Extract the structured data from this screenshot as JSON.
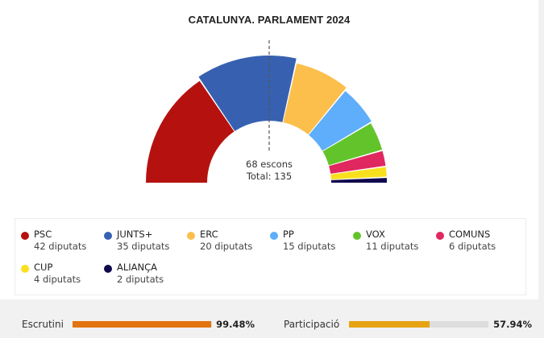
{
  "chart_data": {
    "type": "pie",
    "subtype": "hemicycle",
    "title": "CATALUNYA. PARLAMENT 2024",
    "majority_label": "68 escons",
    "total_label": "Total: 135",
    "majority": 68,
    "total": 135,
    "series": [
      {
        "name": "PSC",
        "seats": 42,
        "seats_label": "42 diputats",
        "color": "#b5120f"
      },
      {
        "name": "JUNTS+",
        "seats": 35,
        "seats_label": "35 diputats",
        "color": "#3761b0"
      },
      {
        "name": "ERC",
        "seats": 20,
        "seats_label": "20 diputats",
        "color": "#fcbf4c"
      },
      {
        "name": "PP",
        "seats": 15,
        "seats_label": "15 diputats",
        "color": "#5eaefb"
      },
      {
        "name": "VOX",
        "seats": 11,
        "seats_label": "11 diputats",
        "color": "#62c42a"
      },
      {
        "name": "COMUNS",
        "seats": 6,
        "seats_label": "6 diputats",
        "color": "#e0275f"
      },
      {
        "name": "CUP",
        "seats": 4,
        "seats_label": "4 diputats",
        "color": "#f8e01e"
      },
      {
        "name": "ALIANÇA",
        "seats": 2,
        "seats_label": "2 diputats",
        "color": "#10084d"
      }
    ]
  },
  "footer": {
    "scrutiny": {
      "label": "Escrutini",
      "value": "99.48%",
      "fraction": 0.9948,
      "color": "#e2740f"
    },
    "participation": {
      "label": "Participació",
      "value": "57.94%",
      "fraction": 0.5794,
      "color": "#e6a314"
    }
  }
}
